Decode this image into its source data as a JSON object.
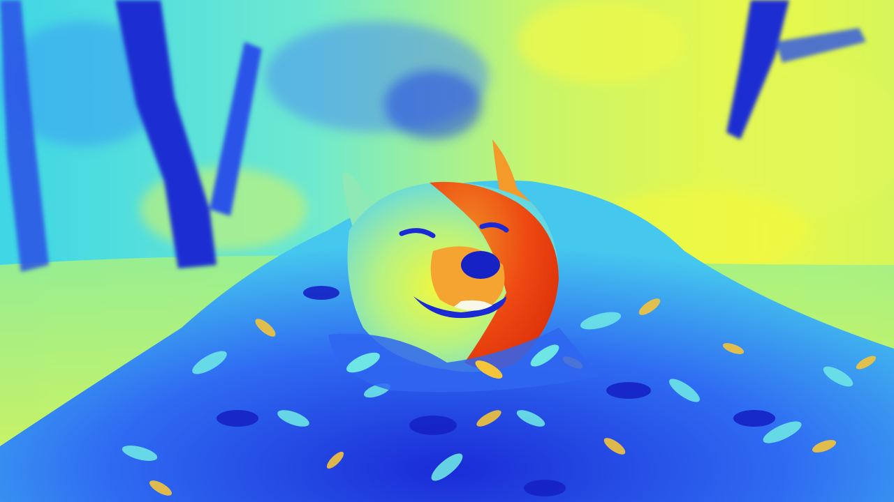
{
  "image": {
    "subject": "dog-in-leaf-pile",
    "palette": {
      "deep_blue": "#1a2bd6",
      "blue": "#2f66f0",
      "cyan": "#4ee3e6",
      "aqua": "#7df2c8",
      "yellow_green": "#c9f56a",
      "yellow": "#f4f83a",
      "orange": "#f6a431",
      "red": "#e8380f"
    }
  }
}
